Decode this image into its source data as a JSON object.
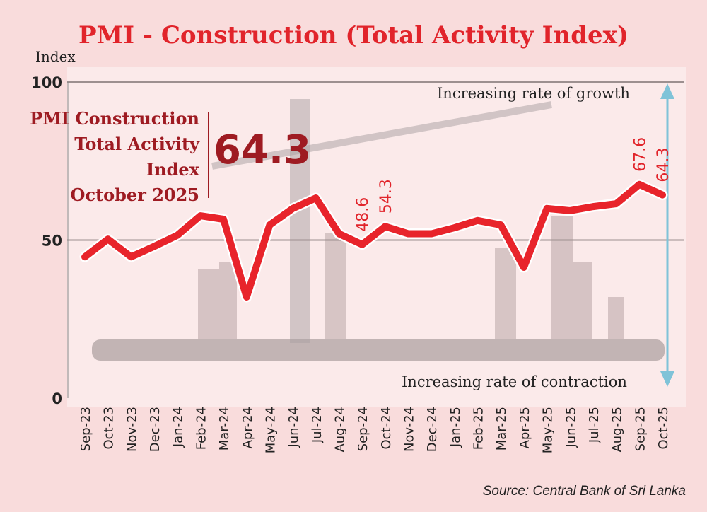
{
  "chart_data": {
    "type": "line",
    "title": "PMI - Construction (Total Activity Index)",
    "ylabel": "Index",
    "xlabel": "",
    "ylim": [
      0,
      100
    ],
    "yticks": [
      0,
      50,
      100
    ],
    "categories": [
      "Sep-23",
      "Oct-23",
      "Nov-23",
      "Dec-23",
      "Jan-24",
      "Feb-24",
      "Mar-24",
      "Apr-24",
      "May-24",
      "Jun-24",
      "Jul-24",
      "Aug-24",
      "Sep-24",
      "Oct-24",
      "Nov-24",
      "Dec-24",
      "Jan-25",
      "Feb-25",
      "Mar-25",
      "Apr-25",
      "May-25",
      "Jun-25",
      "Jul-25",
      "Aug-25",
      "Sep-25",
      "Oct-25"
    ],
    "series": [
      {
        "name": "PMI Construction Total Activity Index",
        "color": "#e8242b",
        "values": [
          44.7,
          50.3,
          44.7,
          48.0,
          51.5,
          57.7,
          56.6,
          32.0,
          54.8,
          60.0,
          63.3,
          52.0,
          48.6,
          54.3,
          52.0,
          52.0,
          53.9,
          56.2,
          54.8,
          41.4,
          60.0,
          59.3,
          60.6,
          61.5,
          67.6,
          64.3
        ]
      }
    ],
    "data_labels": [
      {
        "index": 12,
        "text": "48.6"
      },
      {
        "index": 13,
        "text": "54.3"
      },
      {
        "index": 24,
        "text": "67.6"
      },
      {
        "index": 25,
        "text": "64.3"
      }
    ],
    "grid": true,
    "annotations": {
      "up": "Increasing rate of growth",
      "down": "Increasing rate of contraction"
    }
  },
  "highlight": {
    "lines": [
      "PMI Construction",
      "Total Activity",
      "Index",
      "October 2025"
    ],
    "value": "64.3"
  },
  "source": "Source: Central Bank of Sri Lanka"
}
